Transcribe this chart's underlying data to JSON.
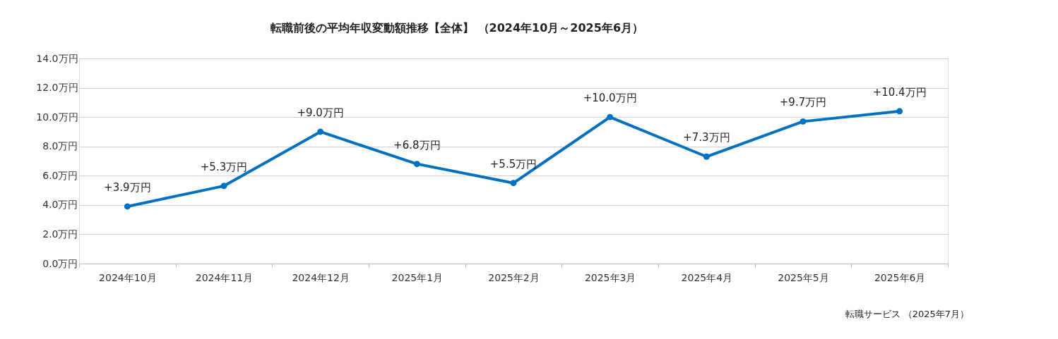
{
  "chart_data": {
    "type": "line",
    "title": "転職前後の平均年収変動額推移【全体】 （2024年10月～2025年6月）",
    "categories": [
      "2024年10月",
      "2024年11月",
      "2024年12月",
      "2025年1月",
      "2025年2月",
      "2025年3月",
      "2025年4月",
      "2025年5月",
      "2025年6月"
    ],
    "series": [
      {
        "color": "#0070c0",
        "values": [
          3.9,
          5.3,
          9.0,
          6.8,
          5.5,
          10.0,
          7.3,
          9.7,
          10.4
        ],
        "value_labels": [
          "+3.9万円",
          "+5.3万円",
          "+9.0万円",
          "+6.8万円",
          "+5.5万円",
          "+10.0万円",
          "+7.3万円",
          "+9.7万円",
          "+10.4万円"
        ]
      }
    ],
    "ylim": [
      0,
      14
    ],
    "yticks": [
      {
        "value": 0,
        "label": "0.0万円"
      },
      {
        "value": 2,
        "label": "2.0万円"
      },
      {
        "value": 4,
        "label": "4.0万円"
      },
      {
        "value": 6,
        "label": "6.0万円"
      },
      {
        "value": 8,
        "label": "8.0万円"
      },
      {
        "value": 10,
        "label": "10.0万円"
      },
      {
        "value": 12,
        "label": "12.0万円"
      },
      {
        "value": 14,
        "label": "14.0万円"
      }
    ],
    "grid": "y",
    "marker": "circle",
    "line_style": "solid",
    "annotations": [
      "転職サービス （2025年7月）"
    ]
  }
}
